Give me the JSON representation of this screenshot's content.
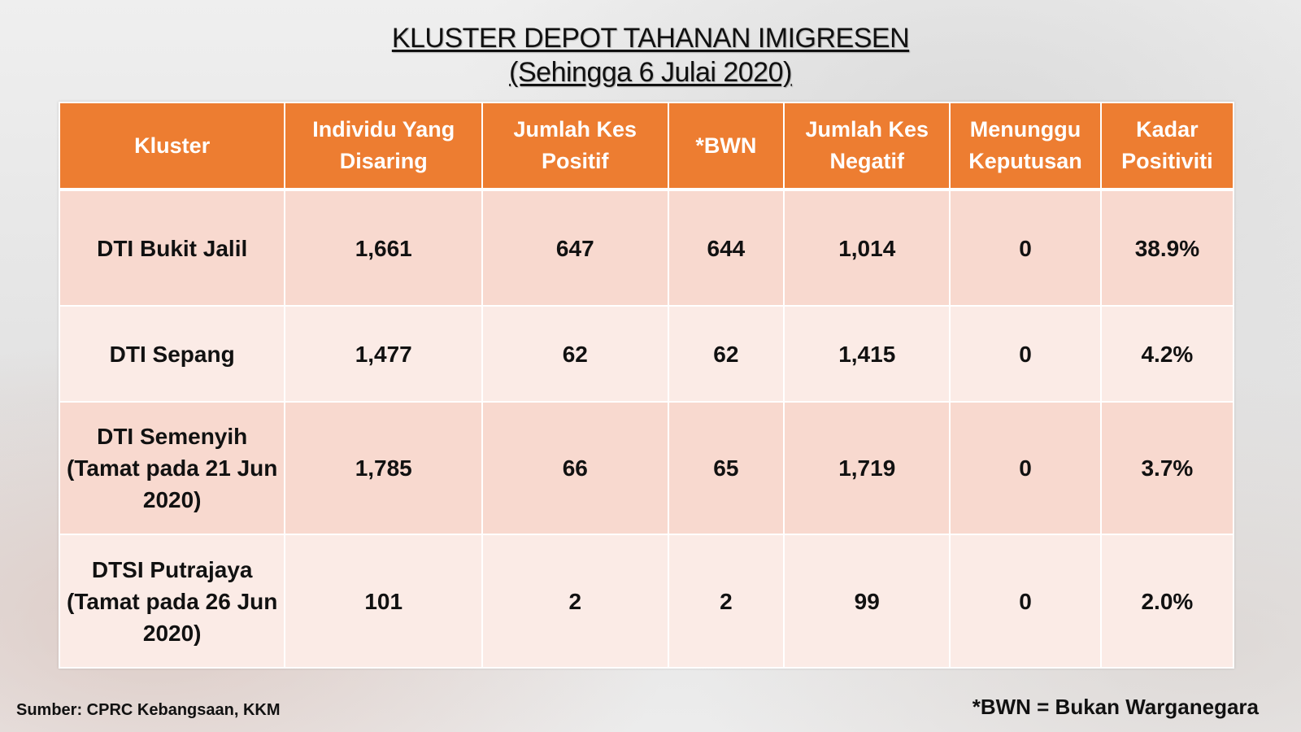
{
  "title": {
    "line1": "KLUSTER DEPOT TAHANAN IMIGRESEN",
    "line2": "(Sehingga 6 Julai 2020)"
  },
  "table": {
    "headers": [
      "Kluster",
      "Individu Yang Disaring",
      "Jumlah Kes Positif",
      "*BWN",
      "Jumlah Kes Negatif",
      "Menunggu Keputusan",
      "Kadar Positiviti"
    ],
    "rows": [
      [
        "DTI Bukit Jalil",
        "1,661",
        "647",
        "644",
        "1,014",
        "0",
        "38.9%"
      ],
      [
        "DTI Sepang",
        "1,477",
        "62",
        "62",
        "1,415",
        "0",
        "4.2%"
      ],
      [
        "DTI Semenyih (Tamat pada 21 Jun 2020)",
        "1,785",
        "66",
        "65",
        "1,719",
        "0",
        "3.7%"
      ],
      [
        "DTSI Putrajaya (Tamat pada 26 Jun 2020)",
        "101",
        "2",
        "2",
        "99",
        "0",
        "2.0%"
      ]
    ]
  },
  "footer": {
    "source": "Sumber: CPRC Kebangsaan, KKM",
    "note": "*BWN = Bukan Warganegara"
  },
  "colors": {
    "header_bg": "#ed7d31",
    "row_dark": "#f8d9cf",
    "row_light": "#fbebe6"
  }
}
